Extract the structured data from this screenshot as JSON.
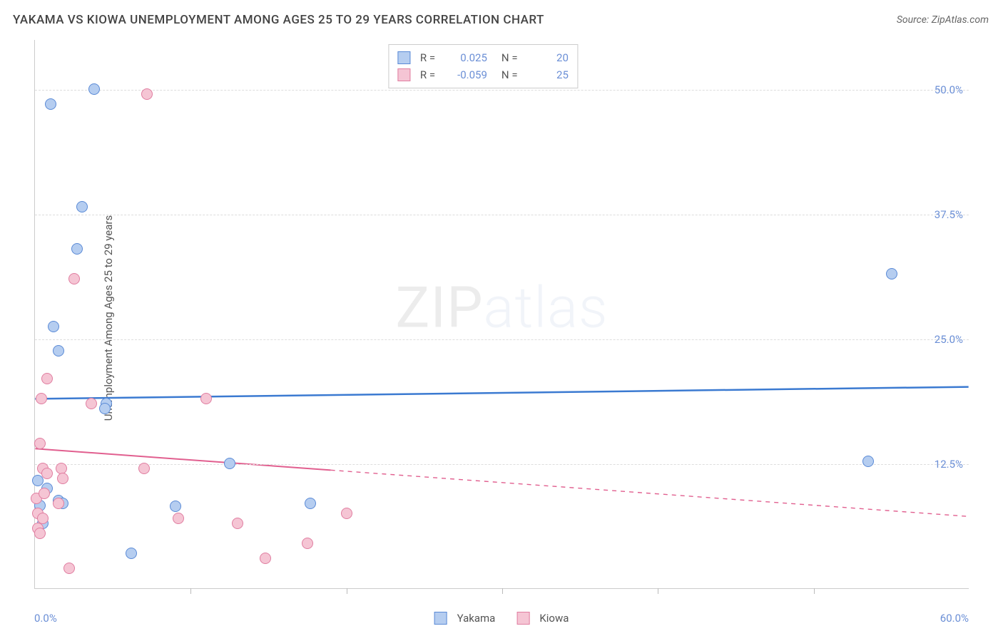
{
  "type": "scatter",
  "title": "YAKAMA VS KIOWA UNEMPLOYMENT AMONG AGES 25 TO 29 YEARS CORRELATION CHART",
  "source": "Source: ZipAtlas.com",
  "ylabel": "Unemployment Among Ages 25 to 29 years",
  "watermark_bold": "ZIP",
  "watermark_light": "atlas",
  "background_color": "#ffffff",
  "grid_color": "#dddddd",
  "axis_color": "#cccccc",
  "x_axis": {
    "min": 0,
    "max": 60,
    "min_label": "0.0%",
    "max_label": "60.0%",
    "ticks": [
      10,
      20,
      30,
      40,
      50
    ]
  },
  "y_axis": {
    "min": 0,
    "max": 55,
    "gridlines": [
      12.5,
      25.0,
      37.5,
      50.0
    ],
    "labels": [
      "12.5%",
      "25.0%",
      "37.5%",
      "50.0%"
    ]
  },
  "tick_label_color": "#6b8fd6",
  "series": [
    {
      "name": "Yakama",
      "fill": "#b5cdf0",
      "stroke": "#5a8ad6",
      "marker_radius": 8,
      "trend": {
        "y_at_xmin": 19.0,
        "y_at_xmax": 20.2,
        "solid_until_x": 60,
        "color": "#3b7ad1",
        "width": 2.5
      },
      "R": "0.025",
      "N": "20",
      "points": [
        [
          1.0,
          48.5
        ],
        [
          3.8,
          50.0
        ],
        [
          3.0,
          38.2
        ],
        [
          2.7,
          34.0
        ],
        [
          1.2,
          26.2
        ],
        [
          1.5,
          23.8
        ],
        [
          4.6,
          18.5
        ],
        [
          0.2,
          10.8
        ],
        [
          0.8,
          10.0
        ],
        [
          1.5,
          8.8
        ],
        [
          1.8,
          8.5
        ],
        [
          9.0,
          8.2
        ],
        [
          12.5,
          12.5
        ],
        [
          17.7,
          8.5
        ],
        [
          6.2,
          3.5
        ],
        [
          4.5,
          18.0
        ],
        [
          55.0,
          31.5
        ],
        [
          53.5,
          12.7
        ],
        [
          0.5,
          6.5
        ],
        [
          0.3,
          8.3
        ]
      ]
    },
    {
      "name": "Kiowa",
      "fill": "#f5c5d4",
      "stroke": "#e07da0",
      "marker_radius": 8,
      "trend": {
        "y_at_xmin": 14.0,
        "y_at_xmax": 7.2,
        "solid_until_x": 19,
        "color": "#e15f8f",
        "width": 2
      },
      "R": "-0.059",
      "N": "25",
      "points": [
        [
          7.2,
          49.5
        ],
        [
          2.5,
          31.0
        ],
        [
          0.8,
          21.0
        ],
        [
          0.4,
          19.0
        ],
        [
          3.6,
          18.5
        ],
        [
          11.0,
          19.0
        ],
        [
          0.3,
          14.5
        ],
        [
          0.5,
          12.0
        ],
        [
          0.8,
          11.5
        ],
        [
          1.7,
          12.0
        ],
        [
          1.8,
          11.0
        ],
        [
          0.1,
          9.0
        ],
        [
          0.2,
          7.5
        ],
        [
          0.5,
          7.0
        ],
        [
          0.6,
          9.5
        ],
        [
          0.2,
          6.0
        ],
        [
          0.3,
          5.5
        ],
        [
          1.5,
          8.5
        ],
        [
          2.2,
          2.0
        ],
        [
          9.2,
          7.0
        ],
        [
          13.0,
          6.5
        ],
        [
          14.8,
          3.0
        ],
        [
          17.5,
          4.5
        ],
        [
          20.0,
          7.5
        ],
        [
          7.0,
          12.0
        ]
      ]
    }
  ],
  "legend_top_rows": [
    {
      "series_index": 0,
      "labels": [
        "R =",
        "0.025",
        "N =",
        "20"
      ]
    },
    {
      "series_index": 1,
      "labels": [
        "R =",
        "-0.059",
        "N =",
        "25"
      ]
    }
  ],
  "legend_bottom": [
    {
      "series_index": 0,
      "label": "Yakama"
    },
    {
      "series_index": 1,
      "label": "Kiowa"
    }
  ]
}
